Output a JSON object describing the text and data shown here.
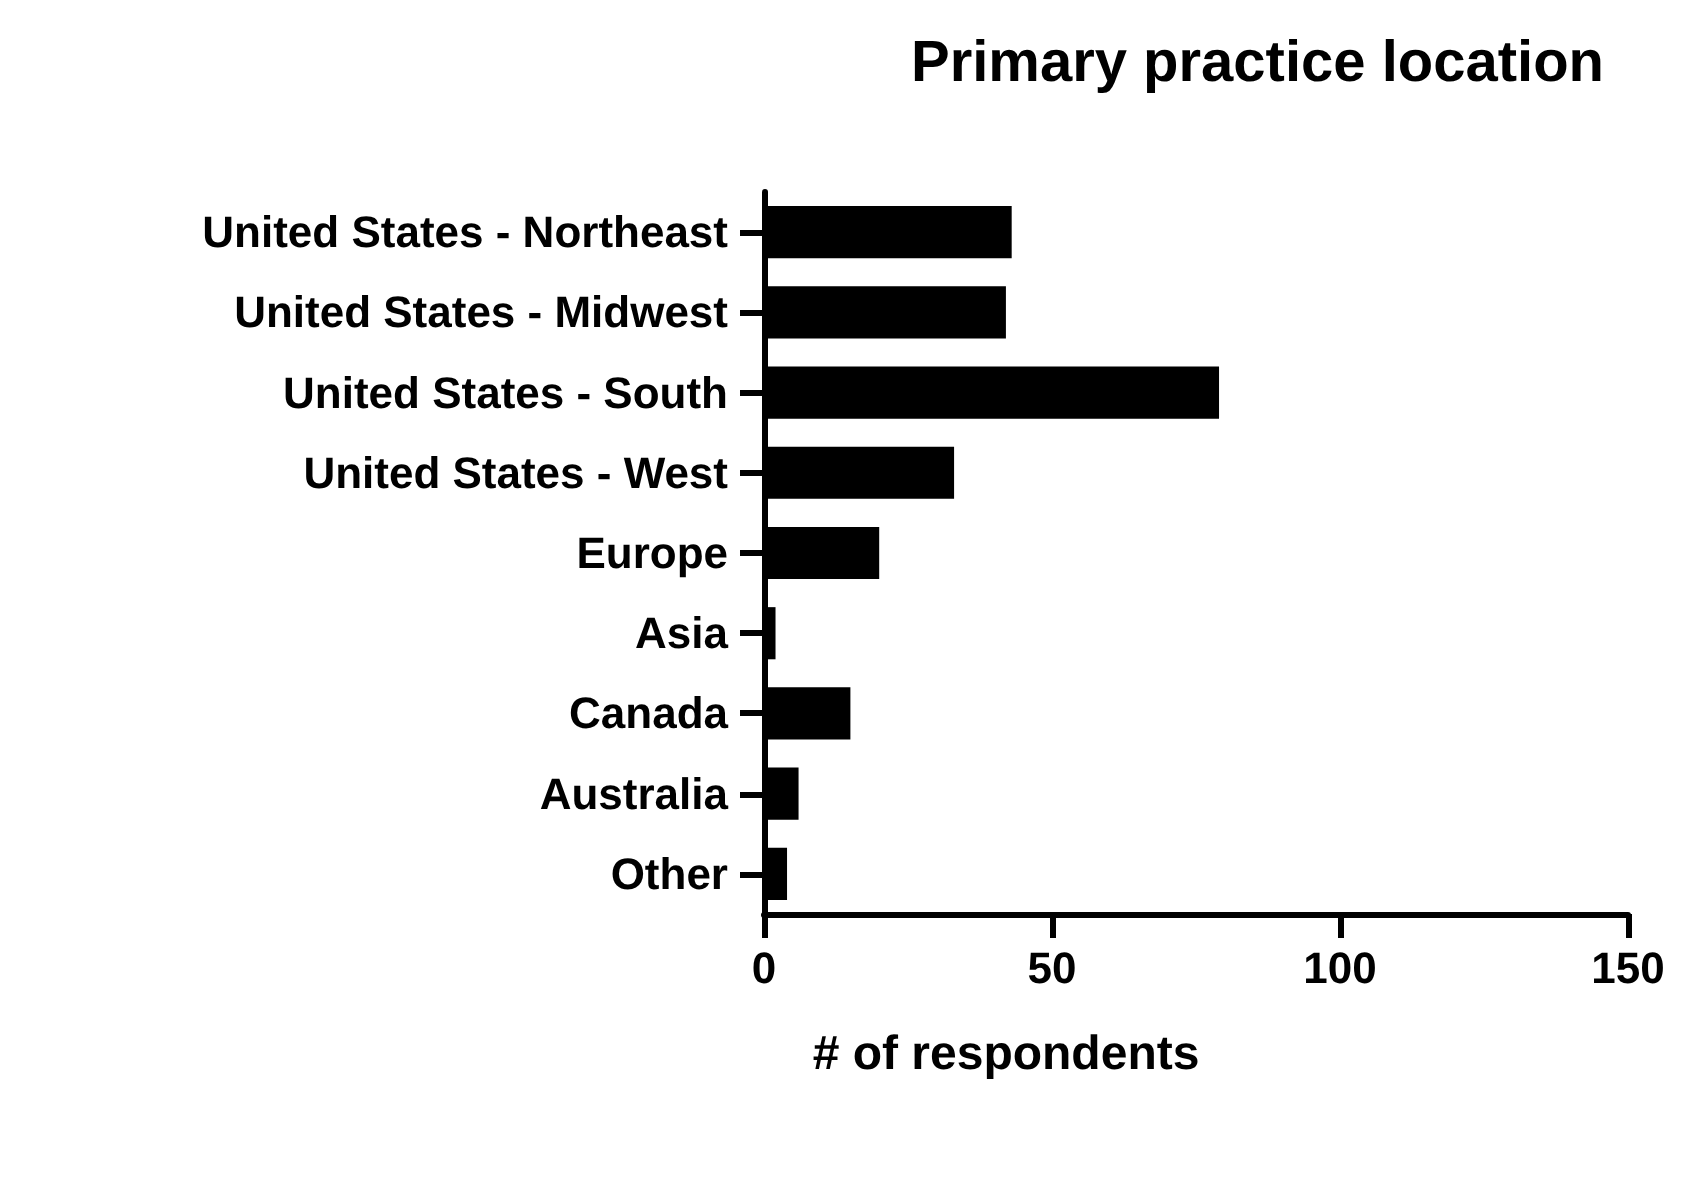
{
  "chart_data": {
    "type": "bar",
    "orientation": "horizontal",
    "title": "Primary practice location",
    "xlabel": "# of respondents",
    "categories": [
      "United States - Northeast",
      "United States - Midwest",
      "United States - South",
      "United States - West",
      "Europe",
      "Asia",
      "Canada",
      "Australia",
      "Other"
    ],
    "values": [
      43,
      42,
      79,
      33,
      20,
      2,
      15,
      6,
      4
    ],
    "color": "#000000",
    "xlim": [
      0,
      150
    ],
    "xticks": [
      0,
      50,
      100,
      150
    ],
    "grid": false
  }
}
